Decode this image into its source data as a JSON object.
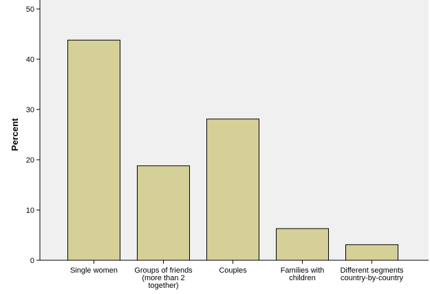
{
  "chart_data": {
    "type": "bar",
    "categories": [
      [
        "Single women"
      ],
      [
        "Groups of friends",
        "(more than 2",
        "together)"
      ],
      [
        "Couples"
      ],
      [
        "Families with",
        "children"
      ],
      [
        "Different segments",
        "country-by-country"
      ]
    ],
    "values": [
      43.8,
      18.8,
      28.1,
      6.3,
      3.1
    ],
    "xlabel": "",
    "ylabel": "Percent",
    "ylim": [
      0,
      50
    ],
    "yticks": [
      0,
      10,
      20,
      30,
      40,
      50
    ],
    "grid": false,
    "legend": "none",
    "colors": {
      "plot_background": "#f0f0f0",
      "bar_fill": "#d4d097",
      "bar_stroke": "#000000",
      "axis": "#000000"
    }
  }
}
